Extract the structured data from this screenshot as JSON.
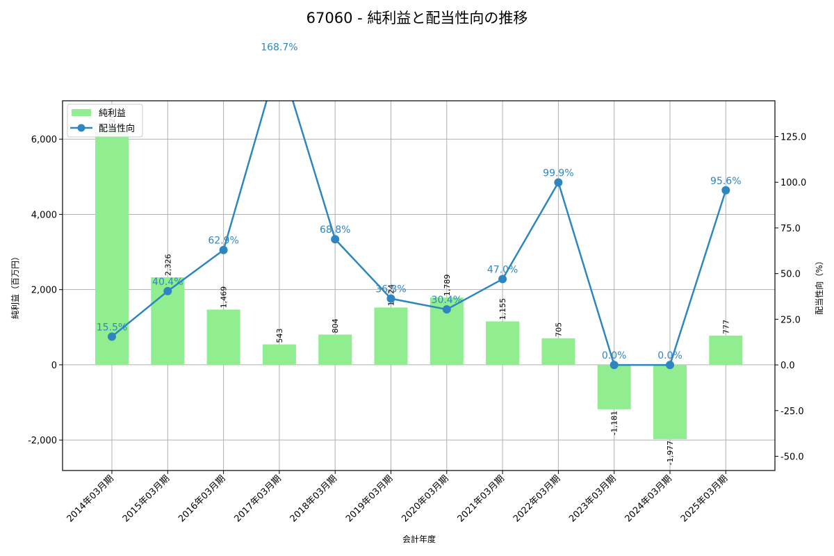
{
  "title": "67060 - 純利益と配当性向の推移",
  "colors": {
    "bar": "#90ee90",
    "line": "#2e86c1",
    "grid": "#b0b0b0",
    "axis": "#000000"
  },
  "legend": {
    "items": [
      {
        "label": "純利益",
        "type": "bar"
      },
      {
        "label": "配当性向",
        "type": "line"
      }
    ]
  },
  "chart_data": {
    "type": "bar+line",
    "title": "67060 - 純利益と配当性向の推移",
    "xlabel": "会計年度",
    "ylabel": "純利益（百万円）",
    "y2label": "配当性向（%）",
    "categories": [
      "2014年03月期",
      "2015年03月期",
      "2016年03月期",
      "2017年03月期",
      "2018年03月期",
      "2019年03月期",
      "2020年03月期",
      "2021年03月期",
      "2022年03月期",
      "2023年03月期",
      "2024年03月期",
      "2025年03月期"
    ],
    "series": [
      {
        "name": "純利益",
        "type": "bar",
        "axis": "left",
        "values": [
          6200,
          2326,
          1469,
          543,
          804,
          1524,
          1789,
          1155,
          705,
          -1181,
          -1977,
          777
        ],
        "labels": [
          "6,200",
          "2,326",
          "1,469",
          "543",
          "804",
          "1,524",
          "1,789",
          "1,155",
          "705",
          "-1,181",
          "-1,977",
          "777"
        ]
      },
      {
        "name": "配当性向",
        "type": "line",
        "axis": "right",
        "values": [
          15.5,
          40.4,
          62.9,
          168.7,
          68.8,
          36.3,
          30.4,
          47.0,
          99.9,
          0.0,
          0.0,
          95.6
        ],
        "labels": [
          "15.5%",
          "40.4%",
          "62.9%",
          "168.7%",
          "68.8%",
          "36.3%",
          "30.4%",
          "47.0%",
          "99.9%",
          "0.0%",
          "0.0%",
          "95.6%"
        ]
      }
    ],
    "ylim": [
      -2810,
      7020
    ],
    "y2lim": [
      -57.8,
      144.6
    ],
    "yticks": [
      -2000,
      0,
      2000,
      4000,
      6000
    ],
    "yticklabels": [
      "-2,000",
      "0",
      "2,000",
      "4,000",
      "6,000"
    ],
    "y2ticks": [
      -50,
      -25,
      0,
      25,
      50,
      75,
      100,
      125
    ],
    "y2ticklabels": [
      "-50.0",
      "-25.0",
      "0.0",
      "25.0",
      "50.0",
      "75.0",
      "100.0",
      "125.0"
    ],
    "grid": true,
    "legend_position": "upper left"
  }
}
